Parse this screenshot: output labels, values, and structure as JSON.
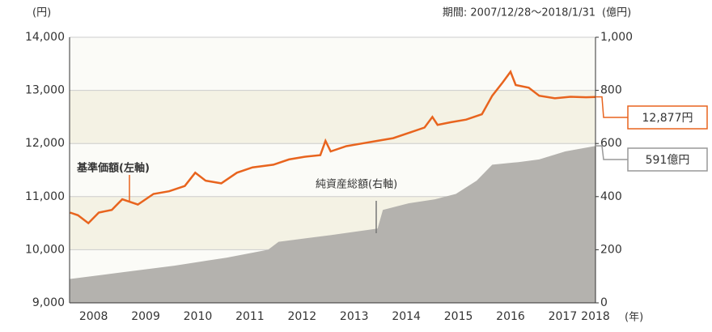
{
  "chart_data": {
    "type": "line",
    "period": "期間: 2007/12/28～2018/1/31",
    "y_unit": "(円)",
    "y2_unit": "(億円)",
    "x_unit": "(年)",
    "xlim": [
      2007.99,
      2018.08
    ],
    "xticks": [
      {
        "value": 2008.45,
        "label": "2008"
      },
      {
        "value": 2009.45,
        "label": "2009"
      },
      {
        "value": 2010.45,
        "label": "2010"
      },
      {
        "value": 2011.45,
        "label": "2011"
      },
      {
        "value": 2012.45,
        "label": "2012"
      },
      {
        "value": 2013.45,
        "label": "2013"
      },
      {
        "value": 2014.45,
        "label": "2014"
      },
      {
        "value": 2015.45,
        "label": "2015"
      },
      {
        "value": 2016.45,
        "label": "2016"
      },
      {
        "value": 2017.45,
        "label": "2017"
      },
      {
        "value": 2018.08,
        "label": "2018"
      }
    ],
    "ylim": [
      9000,
      14000
    ],
    "yticks": [
      {
        "value": 9000,
        "label": "9,000"
      },
      {
        "value": 10000,
        "label": "10,000"
      },
      {
        "value": 11000,
        "label": "11,000"
      },
      {
        "value": 12000,
        "label": "12,000"
      },
      {
        "value": 13000,
        "label": "13,000"
      },
      {
        "value": 14000,
        "label": "14,000"
      }
    ],
    "y2lim": [
      0,
      1000
    ],
    "y2ticks": [
      0,
      200,
      400,
      600,
      800,
      {
        "value": 1000,
        "label": "1,000"
      }
    ],
    "grid": true,
    "series": [
      {
        "name": "基準価額(左軸)",
        "color": "#e8641e",
        "axis": "y",
        "kind": "line",
        "x": [
          2008.0,
          2008.15,
          2008.35,
          2008.55,
          2008.8,
          2009.0,
          2009.3,
          2009.6,
          2009.9,
          2010.2,
          2010.4,
          2010.6,
          2010.9,
          2011.2,
          2011.5,
          2011.9,
          2012.2,
          2012.5,
          2012.8,
          2012.9,
          2013.0,
          2013.3,
          2013.6,
          2013.9,
          2014.2,
          2014.5,
          2014.8,
          2014.95,
          2015.05,
          2015.3,
          2015.6,
          2015.9,
          2016.1,
          2016.3,
          2016.45,
          2016.55,
          2016.8,
          2017.0,
          2017.3,
          2017.6,
          2017.9,
          2018.08
        ],
        "values": [
          10700,
          10650,
          10500,
          10700,
          10750,
          10950,
          10850,
          11050,
          11100,
          11200,
          11450,
          11300,
          11250,
          11450,
          11550,
          11600,
          11700,
          11750,
          11780,
          12050,
          11850,
          11950,
          12000,
          12050,
          12100,
          12200,
          12300,
          12500,
          12350,
          12400,
          12450,
          12550,
          12900,
          13150,
          13350,
          13100,
          13050,
          12900,
          12850,
          12880,
          12870,
          12877
        ],
        "end_label": "12,877円"
      },
      {
        "name": "純資産総額(右軸)",
        "color": "#b4b2ae",
        "axis": "y2",
        "kind": "area",
        "x": [
          2008.0,
          2009.0,
          2010.0,
          2011.0,
          2011.8,
          2012.0,
          2013.0,
          2013.9,
          2014.0,
          2014.5,
          2015.0,
          2015.4,
          2015.8,
          2016.1,
          2016.6,
          2017.0,
          2017.5,
          2018.08
        ],
        "values": [
          90,
          115,
          140,
          170,
          200,
          230,
          255,
          280,
          350,
          375,
          390,
          410,
          460,
          520,
          530,
          540,
          570,
          591
        ],
        "end_label": "591億円"
      }
    ]
  }
}
